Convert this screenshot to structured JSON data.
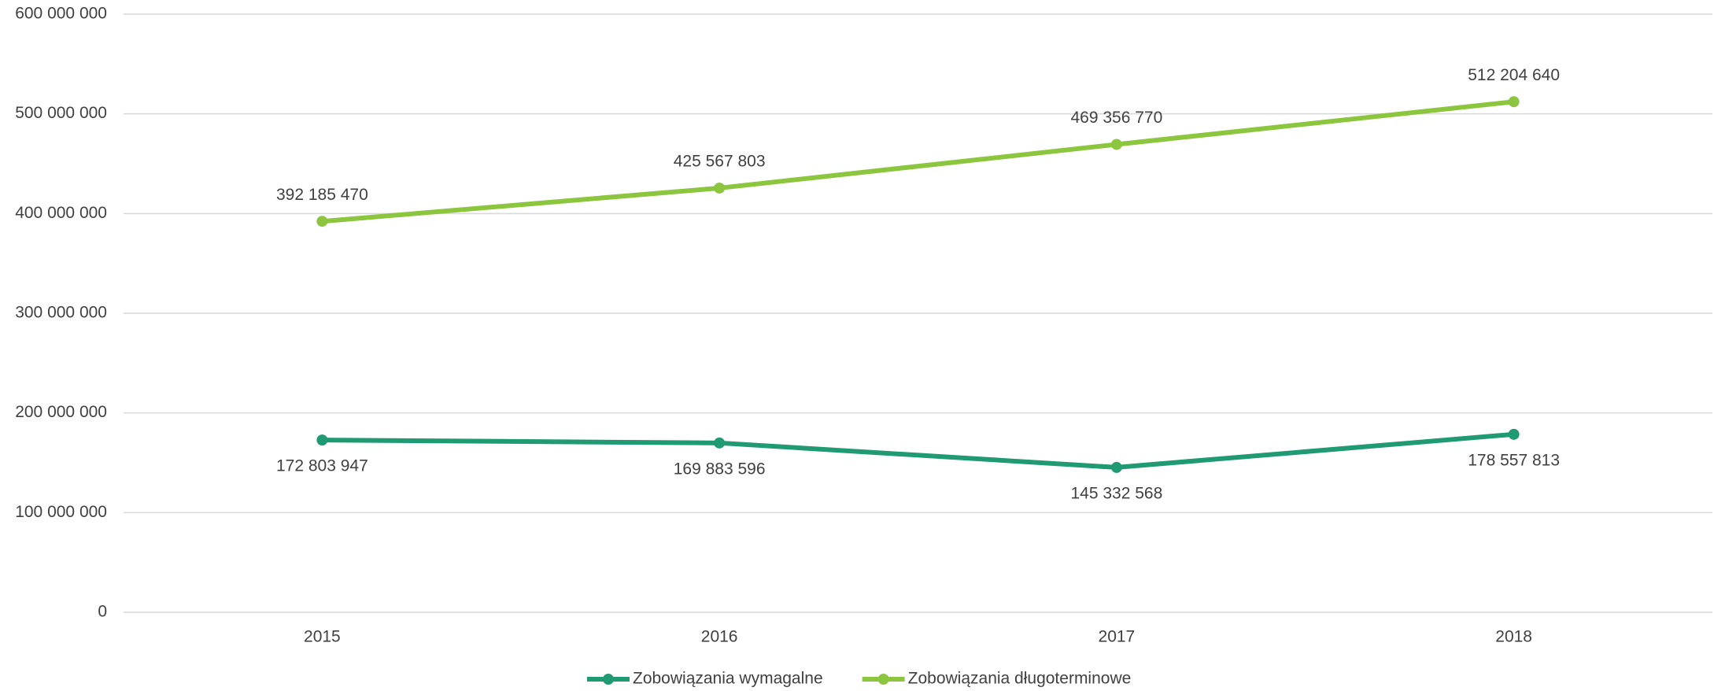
{
  "chart_data": {
    "type": "line",
    "categories": [
      "2015",
      "2016",
      "2017",
      "2018"
    ],
    "series": [
      {
        "name": "Zobowiązania wymagalne",
        "color": "#1f9a72",
        "values": [
          172803947,
          169883596,
          145332568,
          178557813
        ],
        "value_labels": [
          "172 803 947",
          "169 883 596",
          "145 332 568",
          "178 557 813"
        ]
      },
      {
        "name": "Zobowiązania długoterminowe",
        "color": "#8cc63f",
        "values": [
          392185470,
          425567803,
          469356770,
          512204640
        ],
        "value_labels": [
          "392 185 470",
          "425 567 803",
          "469 356 770",
          "512 204 640"
        ]
      }
    ],
    "ylim": [
      0,
      600000000
    ],
    "yticks": [
      0,
      {
        "value": 100000000,
        "label": "100 000 000"
      },
      {
        "value": 200000000,
        "label": "200 000 000"
      },
      {
        "value": 300000000,
        "label": "300 000 000"
      },
      {
        "value": 400000000,
        "label": "400 000 000"
      },
      {
        "value": 500000000,
        "label": "500 000 000"
      },
      {
        "value": 600000000,
        "label": "600 000 000"
      }
    ],
    "grid": true,
    "legend": "bottom"
  }
}
